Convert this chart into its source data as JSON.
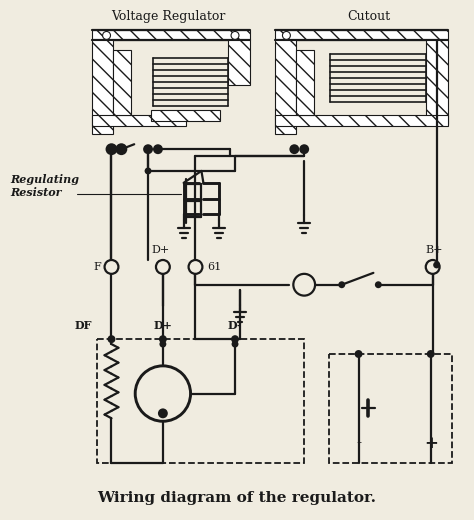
{
  "title": "Wiring diagram of the regulator.",
  "label_voltage_regulator": "Voltage Regulator",
  "label_cutout": "Cutout",
  "label_regulating_resistor": "Regulating\nResistor",
  "bg_color": "#f0ece0",
  "line_color": "#1a1a1a",
  "lw_main": 1.6,
  "lw_thin": 1.0,
  "lw_thick": 2.5,
  "title_fontsize": 11,
  "label_fontsize": 9,
  "term_fontsize": 8
}
